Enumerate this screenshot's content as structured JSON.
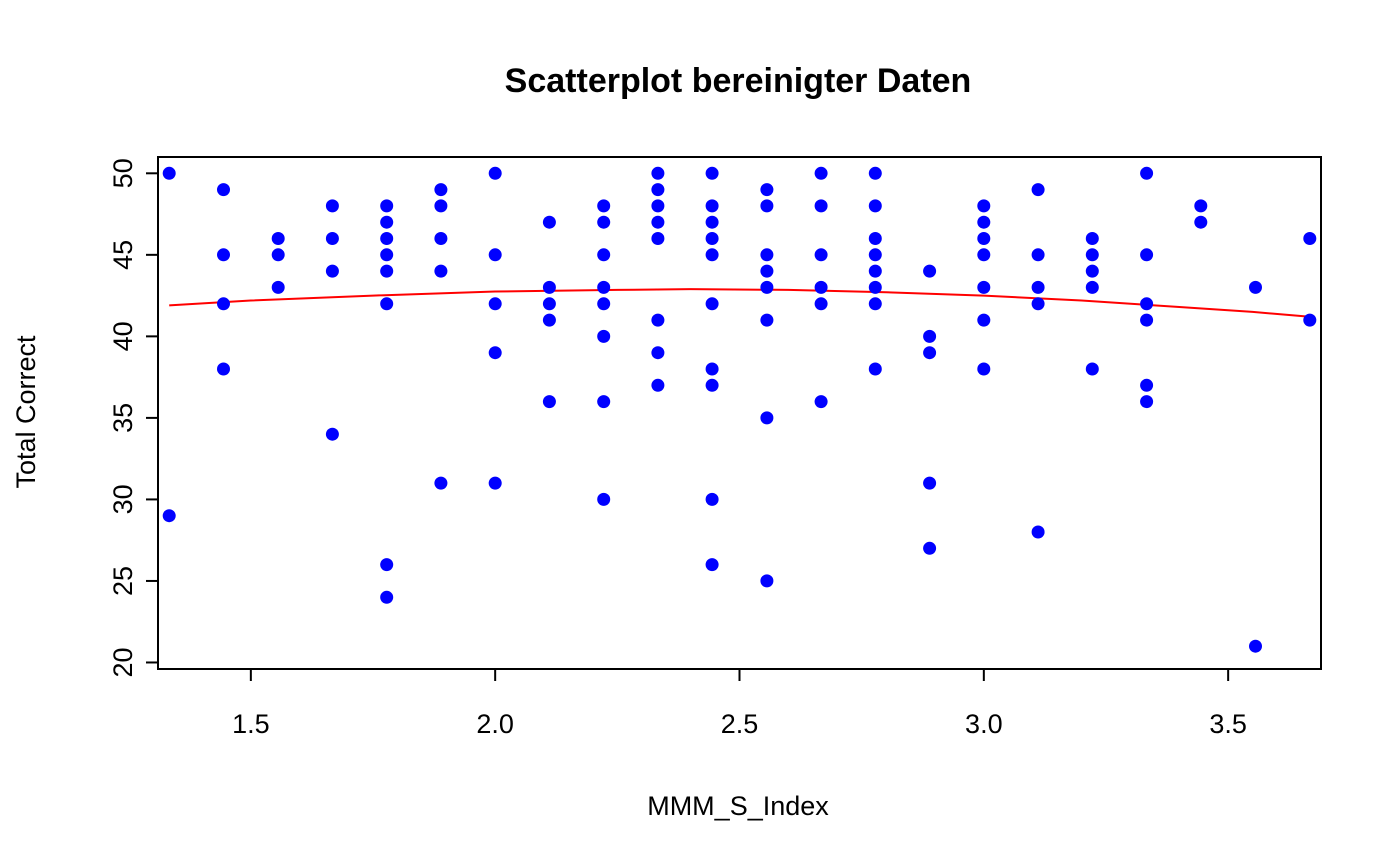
{
  "chart_data": {
    "type": "scatter",
    "title": "Scatterplot bereinigter Daten",
    "xlabel": "MMM_S_Index",
    "ylabel": "Total Correct",
    "xlim": [
      1.31,
      3.69
    ],
    "ylim": [
      19.6,
      51.0
    ],
    "x_ticks": [
      1.5,
      2.0,
      2.5,
      3.0,
      3.5
    ],
    "x_tick_labels": [
      "1.5",
      "2.0",
      "2.5",
      "3.0",
      "3.5"
    ],
    "y_ticks": [
      20,
      25,
      30,
      35,
      40,
      45,
      50
    ],
    "y_tick_labels": [
      "20",
      "25",
      "30",
      "35",
      "40",
      "45",
      "50"
    ],
    "point_color": "#0000ff",
    "trend_color": "#ff0000",
    "grid": false,
    "points": [
      [
        1.333,
        50
      ],
      [
        1.333,
        29
      ],
      [
        1.444,
        49
      ],
      [
        1.444,
        45
      ],
      [
        1.444,
        42
      ],
      [
        1.444,
        38
      ],
      [
        1.556,
        46
      ],
      [
        1.556,
        45
      ],
      [
        1.556,
        43
      ],
      [
        1.667,
        48
      ],
      [
        1.667,
        46
      ],
      [
        1.667,
        44
      ],
      [
        1.667,
        34
      ],
      [
        1.778,
        48
      ],
      [
        1.778,
        47
      ],
      [
        1.778,
        46
      ],
      [
        1.778,
        45
      ],
      [
        1.778,
        44
      ],
      [
        1.778,
        42
      ],
      [
        1.778,
        26
      ],
      [
        1.778,
        24
      ],
      [
        1.889,
        49
      ],
      [
        1.889,
        48
      ],
      [
        1.889,
        46
      ],
      [
        1.889,
        44
      ],
      [
        1.889,
        31
      ],
      [
        2.0,
        50
      ],
      [
        2.0,
        45
      ],
      [
        2.0,
        42
      ],
      [
        2.0,
        39
      ],
      [
        2.0,
        31
      ],
      [
        2.111,
        47
      ],
      [
        2.111,
        43
      ],
      [
        2.111,
        42
      ],
      [
        2.111,
        41
      ],
      [
        2.111,
        36
      ],
      [
        2.222,
        48
      ],
      [
        2.222,
        47
      ],
      [
        2.222,
        45
      ],
      [
        2.222,
        43
      ],
      [
        2.222,
        42
      ],
      [
        2.222,
        40
      ],
      [
        2.222,
        36
      ],
      [
        2.222,
        30
      ],
      [
        2.333,
        50
      ],
      [
        2.333,
        49
      ],
      [
        2.333,
        48
      ],
      [
        2.333,
        47
      ],
      [
        2.333,
        46
      ],
      [
        2.333,
        41
      ],
      [
        2.333,
        39
      ],
      [
        2.333,
        37
      ],
      [
        2.444,
        50
      ],
      [
        2.444,
        48
      ],
      [
        2.444,
        47
      ],
      [
        2.444,
        46
      ],
      [
        2.444,
        45
      ],
      [
        2.444,
        42
      ],
      [
        2.444,
        38
      ],
      [
        2.444,
        37
      ],
      [
        2.444,
        30
      ],
      [
        2.444,
        26
      ],
      [
        2.556,
        49
      ],
      [
        2.556,
        48
      ],
      [
        2.556,
        45
      ],
      [
        2.556,
        44
      ],
      [
        2.556,
        43
      ],
      [
        2.556,
        41
      ],
      [
        2.556,
        35
      ],
      [
        2.556,
        25
      ],
      [
        2.667,
        50
      ],
      [
        2.667,
        48
      ],
      [
        2.667,
        45
      ],
      [
        2.667,
        43
      ],
      [
        2.667,
        42
      ],
      [
        2.667,
        36
      ],
      [
        2.778,
        50
      ],
      [
        2.778,
        48
      ],
      [
        2.778,
        46
      ],
      [
        2.778,
        45
      ],
      [
        2.778,
        44
      ],
      [
        2.778,
        43
      ],
      [
        2.778,
        42
      ],
      [
        2.778,
        38
      ],
      [
        2.889,
        44
      ],
      [
        2.889,
        40
      ],
      [
        2.889,
        39
      ],
      [
        2.889,
        31
      ],
      [
        2.889,
        27
      ],
      [
        3.0,
        48
      ],
      [
        3.0,
        47
      ],
      [
        3.0,
        46
      ],
      [
        3.0,
        45
      ],
      [
        3.0,
        43
      ],
      [
        3.0,
        41
      ],
      [
        3.0,
        38
      ],
      [
        3.111,
        49
      ],
      [
        3.111,
        45
      ],
      [
        3.111,
        43
      ],
      [
        3.111,
        42
      ],
      [
        3.111,
        28
      ],
      [
        3.222,
        46
      ],
      [
        3.222,
        45
      ],
      [
        3.222,
        44
      ],
      [
        3.222,
        43
      ],
      [
        3.222,
        38
      ],
      [
        3.333,
        50
      ],
      [
        3.333,
        45
      ],
      [
        3.333,
        42
      ],
      [
        3.333,
        41
      ],
      [
        3.333,
        37
      ],
      [
        3.333,
        36
      ],
      [
        3.444,
        48
      ],
      [
        3.444,
        47
      ],
      [
        3.556,
        43
      ],
      [
        3.556,
        21
      ],
      [
        3.667,
        46
      ],
      [
        3.667,
        41
      ]
    ],
    "trend_line": [
      [
        1.333,
        41.9
      ],
      [
        1.5,
        42.2
      ],
      [
        1.75,
        42.5
      ],
      [
        2.0,
        42.75
      ],
      [
        2.25,
        42.85
      ],
      [
        2.4,
        42.9
      ],
      [
        2.6,
        42.85
      ],
      [
        2.8,
        42.7
      ],
      [
        3.0,
        42.5
      ],
      [
        3.2,
        42.2
      ],
      [
        3.4,
        41.8
      ],
      [
        3.55,
        41.5
      ],
      [
        3.667,
        41.2
      ]
    ]
  }
}
